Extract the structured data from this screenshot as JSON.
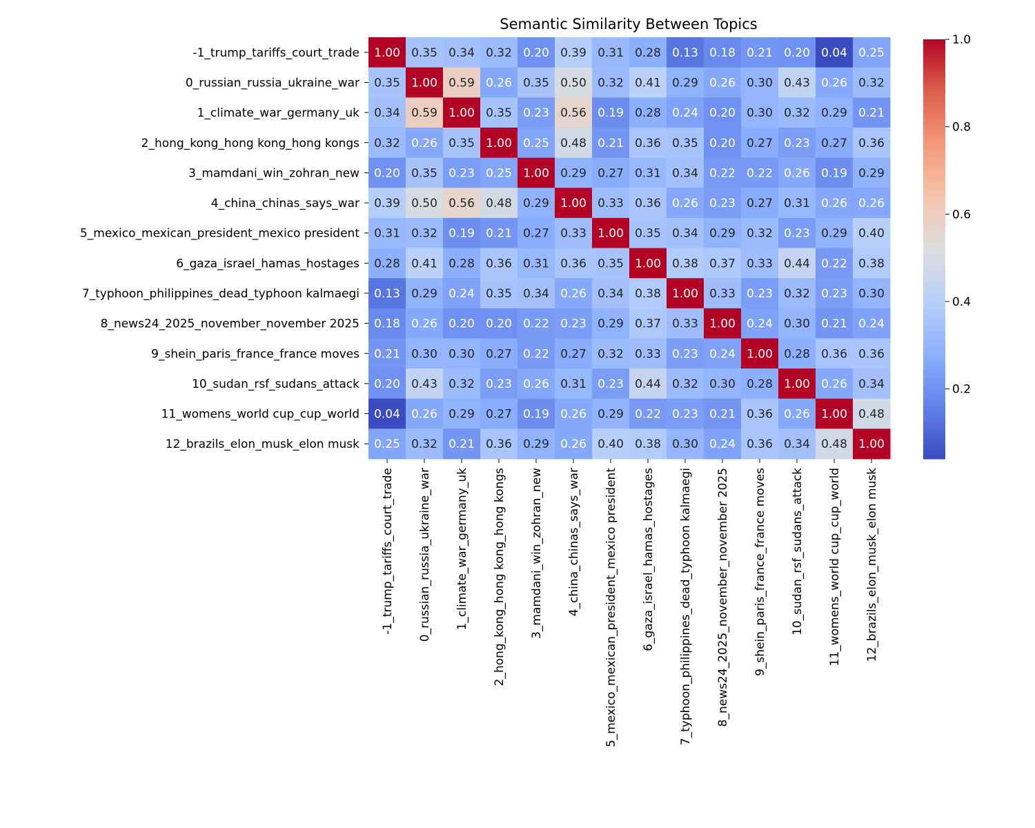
{
  "chart_data": {
    "type": "heatmap",
    "title": "Semantic Similarity Between Topics",
    "colormap": "coolwarm",
    "color_range": [
      0.04,
      1.0
    ],
    "colorbar_ticks": [
      0.2,
      0.4,
      0.6,
      0.8,
      1.0
    ],
    "colorbar_tick_labels": [
      "0.2",
      "0.4",
      "0.6",
      "0.8",
      "1.0"
    ],
    "labels": [
      "-1_trump_tariffs_court_trade",
      "0_russian_russia_ukraine_war",
      "1_climate_war_germany_uk",
      "2_hong_kong_hong kong_hong kongs",
      "3_mamdani_win_zohran_new",
      "4_china_chinas_says_war",
      "5_mexico_mexican_president_mexico president",
      "6_gaza_israel_hamas_hostages",
      "7_typhoon_philippines_dead_typhoon kalmaegi",
      "8_news24_2025_november_november 2025",
      "9_shein_paris_france_france moves",
      "10_sudan_rsf_sudans_attack",
      "11_womens_world cup_cup_world",
      "12_brazils_elon_musk_elon musk"
    ],
    "values": [
      [
        1.0,
        0.35,
        0.34,
        0.32,
        0.2,
        0.39,
        0.31,
        0.28,
        0.13,
        0.18,
        0.21,
        0.2,
        0.04,
        0.25
      ],
      [
        0.35,
        1.0,
        0.59,
        0.26,
        0.35,
        0.5,
        0.32,
        0.41,
        0.29,
        0.26,
        0.3,
        0.43,
        0.26,
        0.32
      ],
      [
        0.34,
        0.59,
        1.0,
        0.35,
        0.23,
        0.56,
        0.19,
        0.28,
        0.24,
        0.2,
        0.3,
        0.32,
        0.29,
        0.21
      ],
      [
        0.32,
        0.26,
        0.35,
        1.0,
        0.25,
        0.48,
        0.21,
        0.36,
        0.35,
        0.2,
        0.27,
        0.23,
        0.27,
        0.36
      ],
      [
        0.2,
        0.35,
        0.23,
        0.25,
        1.0,
        0.29,
        0.27,
        0.31,
        0.34,
        0.22,
        0.22,
        0.26,
        0.19,
        0.29
      ],
      [
        0.39,
        0.5,
        0.56,
        0.48,
        0.29,
        1.0,
        0.33,
        0.36,
        0.26,
        0.23,
        0.27,
        0.31,
        0.26,
        0.26
      ],
      [
        0.31,
        0.32,
        0.19,
        0.21,
        0.27,
        0.33,
        1.0,
        0.35,
        0.34,
        0.29,
        0.32,
        0.23,
        0.29,
        0.4
      ],
      [
        0.28,
        0.41,
        0.28,
        0.36,
        0.31,
        0.36,
        0.35,
        1.0,
        0.38,
        0.37,
        0.33,
        0.44,
        0.22,
        0.38
      ],
      [
        0.13,
        0.29,
        0.24,
        0.35,
        0.34,
        0.26,
        0.34,
        0.38,
        1.0,
        0.33,
        0.23,
        0.32,
        0.23,
        0.3
      ],
      [
        0.18,
        0.26,
        0.2,
        0.2,
        0.22,
        0.23,
        0.29,
        0.37,
        0.33,
        1.0,
        0.24,
        0.3,
        0.21,
        0.24
      ],
      [
        0.21,
        0.3,
        0.3,
        0.27,
        0.22,
        0.27,
        0.32,
        0.33,
        0.23,
        0.24,
        1.0,
        0.28,
        0.36,
        0.36
      ],
      [
        0.2,
        0.43,
        0.32,
        0.23,
        0.26,
        0.31,
        0.23,
        0.44,
        0.32,
        0.3,
        0.28,
        1.0,
        0.26,
        0.34
      ],
      [
        0.04,
        0.26,
        0.29,
        0.27,
        0.19,
        0.26,
        0.29,
        0.22,
        0.23,
        0.21,
        0.36,
        0.26,
        1.0,
        0.48
      ],
      [
        0.25,
        0.32,
        0.21,
        0.36,
        0.29,
        0.26,
        0.4,
        0.38,
        0.3,
        0.24,
        0.36,
        0.34,
        0.48,
        1.0
      ]
    ],
    "annotation_format": "0.00",
    "xlabel": "",
    "ylabel": ""
  }
}
